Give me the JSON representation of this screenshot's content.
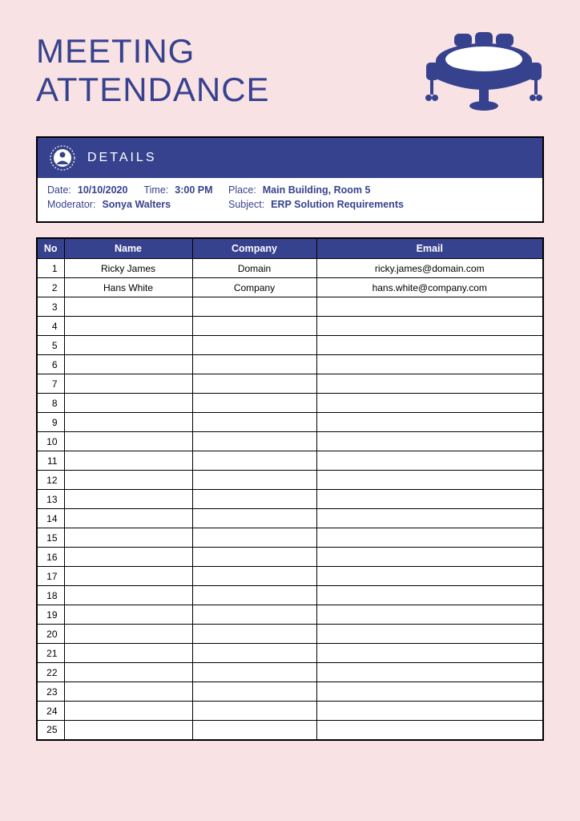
{
  "colors": {
    "page_bg": "#f9e2e4",
    "primary": "#37428e",
    "table_border": "#000000",
    "table_bg": "#ffffff",
    "header_text": "#ffffff"
  },
  "title": {
    "line1": "MEETING",
    "line2": "ATTENDANCE"
  },
  "details": {
    "header": "DETAILS",
    "labels": {
      "date": "Date:",
      "time": "Time:",
      "place": "Place:",
      "moderator": "Moderator:",
      "subject": "Subject:"
    },
    "values": {
      "date": "10/10/2020",
      "time": "3:00 PM",
      "place": "Main Building, Room 5",
      "moderator": "Sonya Walters",
      "subject": "ERP Solution Requirements"
    }
  },
  "table": {
    "columns": [
      "No",
      "Name",
      "Company",
      "Email"
    ],
    "total_rows": 25,
    "rows": [
      {
        "no": "1",
        "name": "Ricky James",
        "company": "Domain",
        "email": "ricky.james@domain.com"
      },
      {
        "no": "2",
        "name": "Hans White",
        "company": "Company",
        "email": "hans.white@company.com"
      }
    ]
  }
}
